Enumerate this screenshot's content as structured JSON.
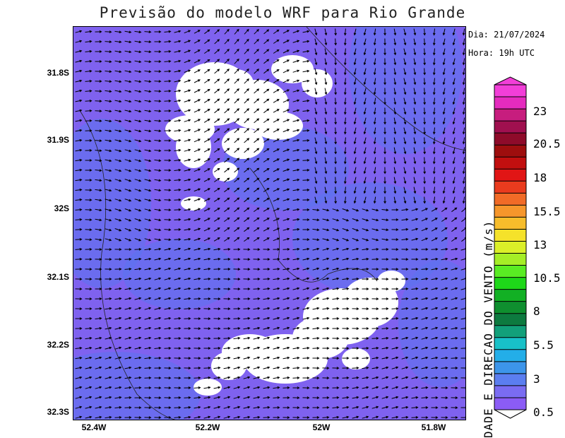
{
  "title": "Previsão do modelo WRF para Rio Grande",
  "info": {
    "date": "Dia: 21/07/2024",
    "time": "Hora: 19h UTC"
  },
  "map": {
    "lat_labels": [
      "31.8S",
      "31.9S",
      "32S",
      "32.1S",
      "32.2S",
      "32.3S"
    ],
    "lon_labels": [
      "52.4W",
      "52.2W",
      "52W",
      "51.8W"
    ],
    "field": "wind speed (m/s) with wind direction vectors",
    "background_color": "#7f62ef",
    "cloud_mask_color": "#ffffff"
  },
  "colorbar": {
    "title": "DADE E DIRECAO DO VENTO (m/s)",
    "labels": [
      "23",
      "20.5",
      "18",
      "15.5",
      "13",
      "10.5",
      "8",
      "5.5",
      "3",
      "0.5"
    ],
    "colors": [
      "#8b5cf6",
      "#7a6cf2",
      "#5b7ef0",
      "#3c95ea",
      "#23aee8",
      "#18c1c8",
      "#12a07a",
      "#0d7a3f",
      "#0f8f2f",
      "#12b024",
      "#1ed819",
      "#59ec23",
      "#a5ee26",
      "#dbef28",
      "#f5e22a",
      "#f7bd2b",
      "#f6962b",
      "#f16b27",
      "#ea3b1e",
      "#e11515",
      "#c20f0f",
      "#9e0e0e",
      "#8e0b2a",
      "#a0104f",
      "#c71d7e",
      "#e52bbf",
      "#f23ed8"
    ]
  }
}
